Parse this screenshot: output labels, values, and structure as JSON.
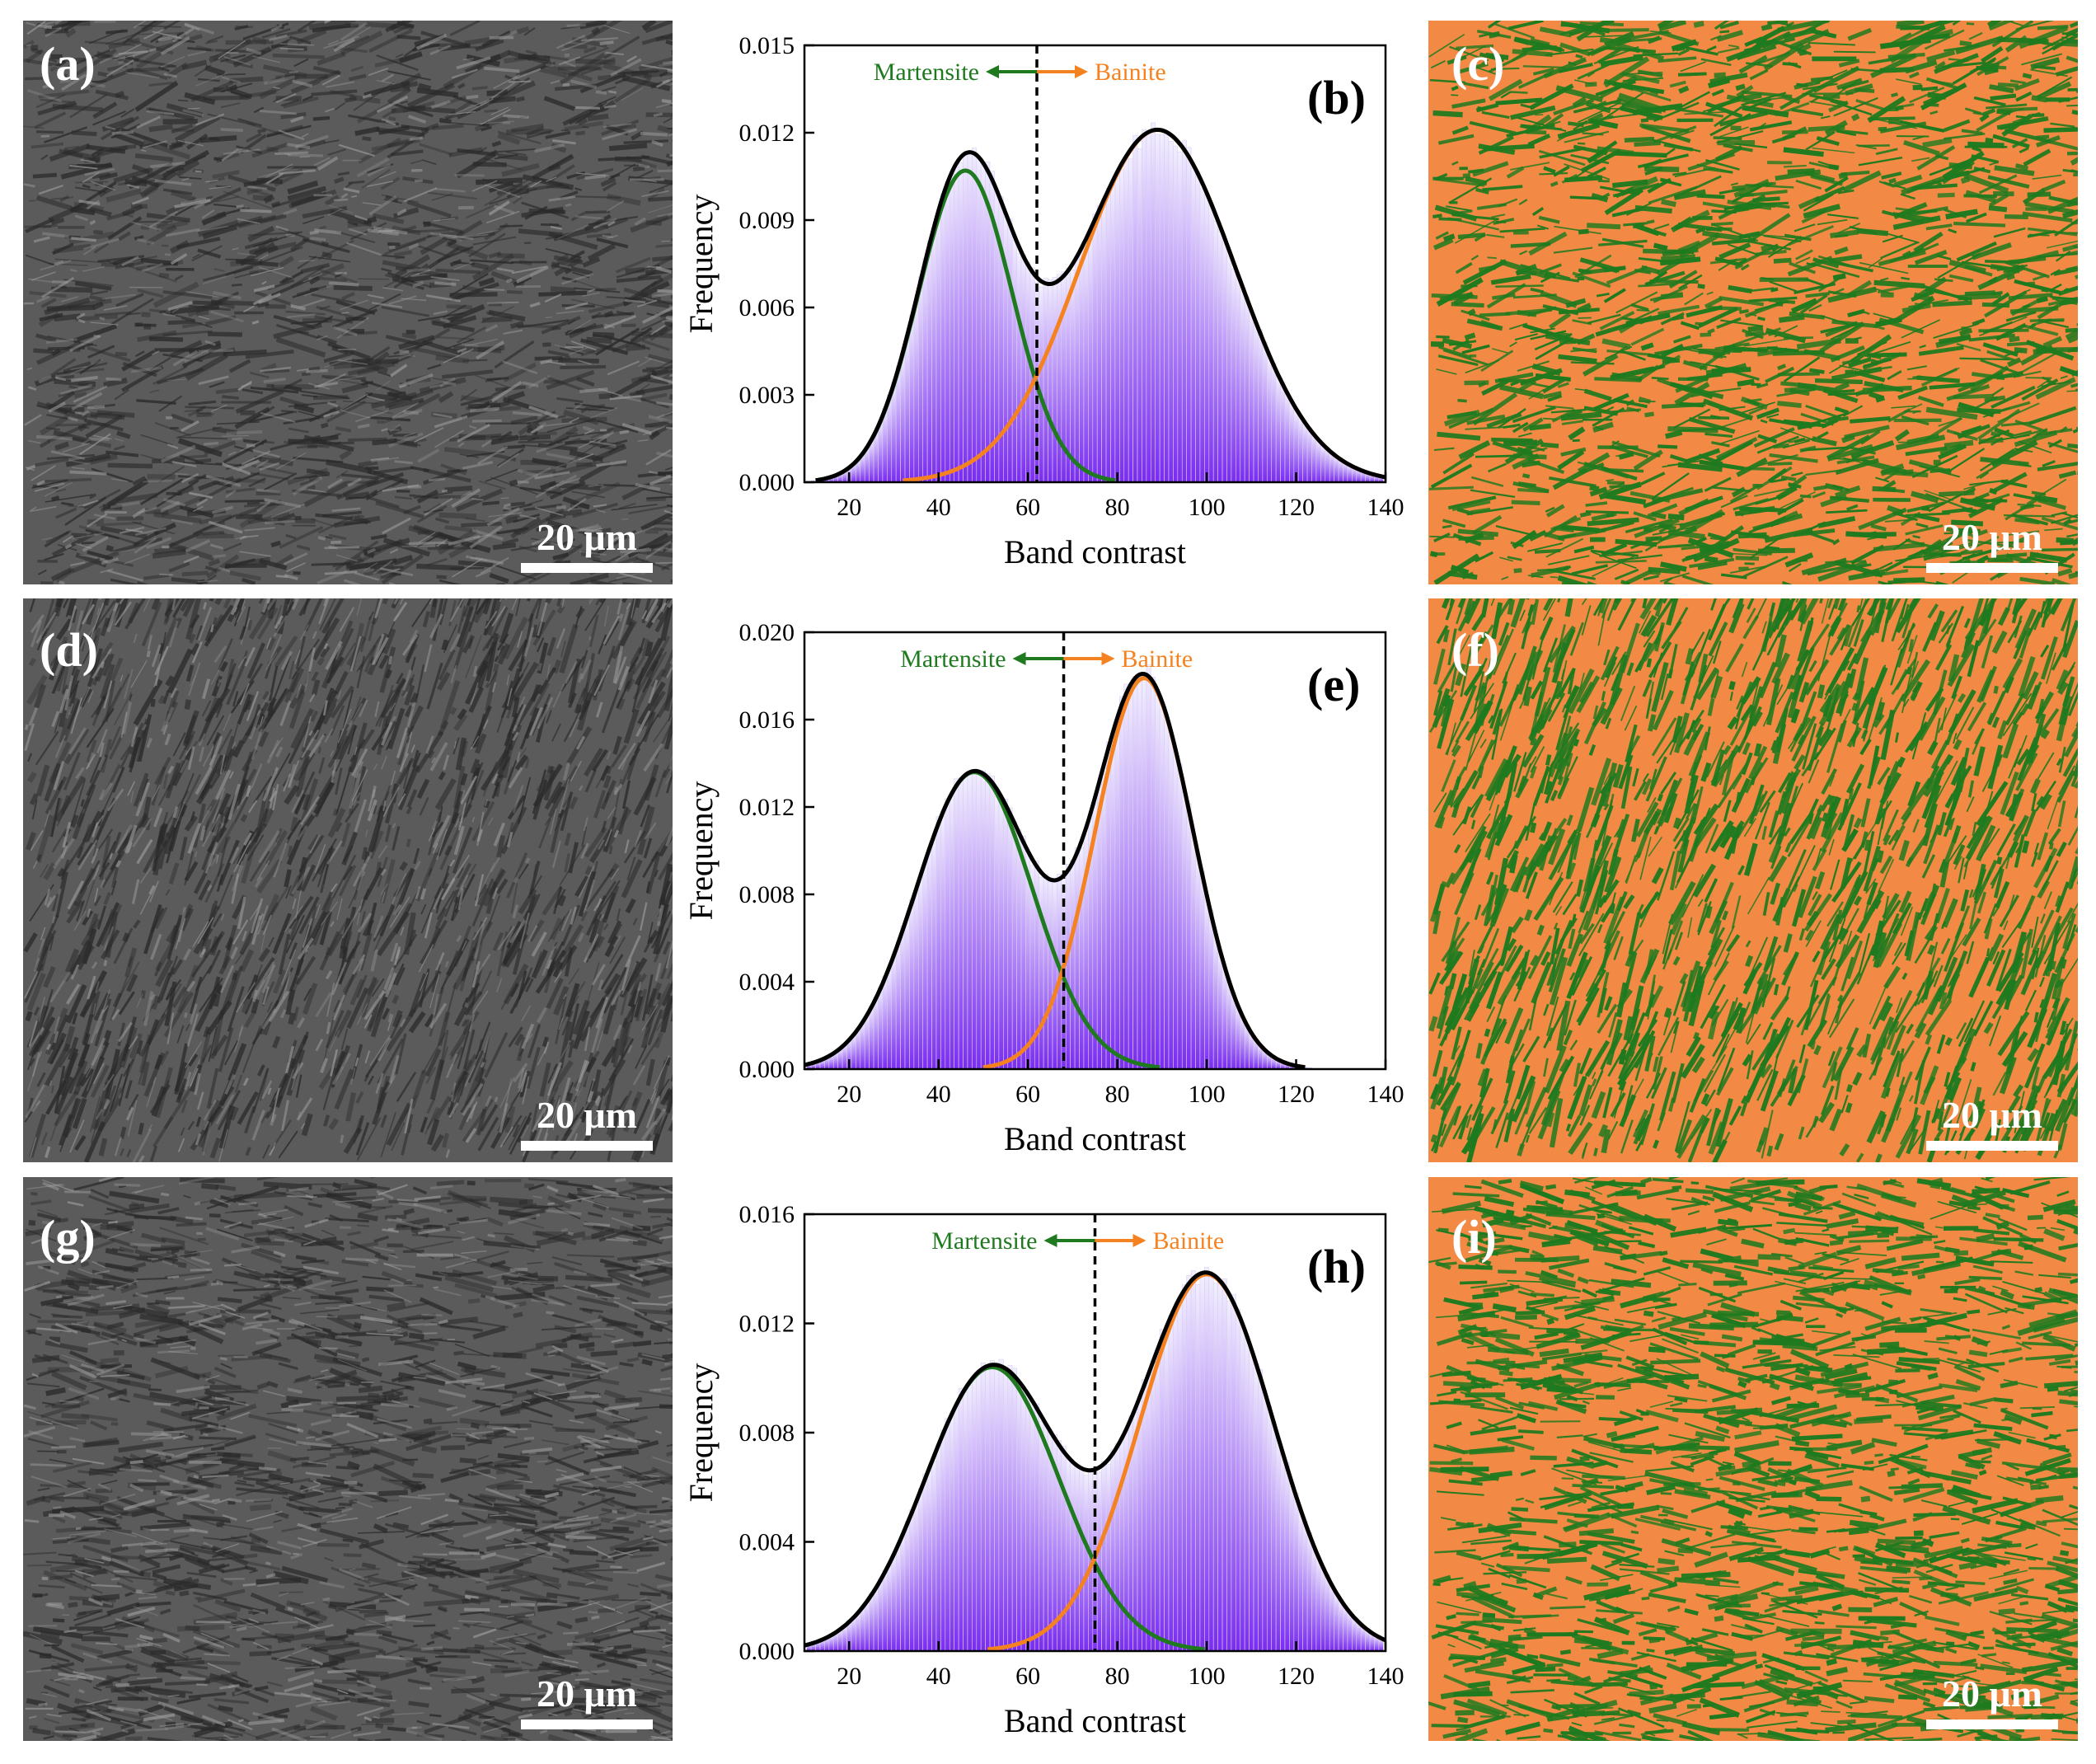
{
  "colors": {
    "martensite": "#1f7a1f",
    "bainite": "#f58220",
    "sum_curve": "#000000",
    "histogram_bottom": "#7a2cf0",
    "histogram_top": "#f2efff",
    "map_background": "#f28a45",
    "sem_gray": "#5b5b5b"
  },
  "rows": [
    {
      "sem": {
        "label": "(a)",
        "scale_text": "20 μm"
      },
      "map": {
        "label": "(c)",
        "scale_text": "20 μm"
      }
    },
    {
      "sem": {
        "label": "(d)",
        "scale_text": "20 μm"
      },
      "map": {
        "label": "(f)",
        "scale_text": "20 μm"
      }
    },
    {
      "sem": {
        "label": "(g)",
        "scale_text": "20 μm"
      },
      "map": {
        "label": "(i)",
        "scale_text": "20 μm"
      }
    }
  ],
  "chart_data": [
    {
      "type": "area",
      "panel_label": "(b)",
      "xlabel": "Band contrast",
      "ylabel": "Frequency",
      "xlim": [
        10,
        140
      ],
      "ylim": [
        0,
        0.015
      ],
      "xticks": [
        "20",
        "40",
        "60",
        "80",
        "100",
        "120",
        "140"
      ],
      "yticks": [
        "0.000",
        "0.003",
        "0.006",
        "0.009",
        "0.012",
        "0.015"
      ],
      "threshold": 62,
      "arrow_labels": {
        "left": "Martensite",
        "right": "Bainite"
      },
      "series": [
        {
          "name": "Martensite",
          "peak_x": 46,
          "amplitude": 0.0107,
          "sigma": 10.5
        },
        {
          "name": "Bainite",
          "peak_x": 89,
          "amplitude": 0.0121,
          "sigma": 17.5
        }
      ]
    },
    {
      "type": "area",
      "panel_label": "(e)",
      "xlabel": "Band contrast",
      "ylabel": "Frequency",
      "xlim": [
        10,
        140
      ],
      "ylim": [
        0,
        0.02
      ],
      "xticks": [
        "20",
        "40",
        "60",
        "80",
        "100",
        "120",
        "140"
      ],
      "yticks": [
        "0.000",
        "0.004",
        "0.008",
        "0.012",
        "0.016",
        "0.020"
      ],
      "threshold": 68,
      "arrow_labels": {
        "left": "Martensite",
        "right": "Bainite"
      },
      "series": [
        {
          "name": "Martensite",
          "peak_x": 48,
          "amplitude": 0.0136,
          "sigma": 13
        },
        {
          "name": "Bainite",
          "peak_x": 86,
          "amplitude": 0.0179,
          "sigma": 11
        }
      ]
    },
    {
      "type": "area",
      "panel_label": "(h)",
      "xlabel": "Band contrast",
      "ylabel": "Frequency",
      "xlim": [
        10,
        140
      ],
      "ylim": [
        0,
        0.016
      ],
      "xticks": [
        "20",
        "40",
        "60",
        "80",
        "100",
        "120",
        "140"
      ],
      "yticks": [
        "0.000",
        "0.004",
        "0.008",
        "0.012",
        "0.016"
      ],
      "threshold": 75,
      "arrow_labels": {
        "left": "Martensite",
        "right": "Bainite"
      },
      "series": [
        {
          "name": "Martensite",
          "peak_x": 52,
          "amplitude": 0.0104,
          "sigma": 15
        },
        {
          "name": "Bainite",
          "peak_x": 100,
          "amplitude": 0.0138,
          "sigma": 15
        }
      ]
    }
  ]
}
